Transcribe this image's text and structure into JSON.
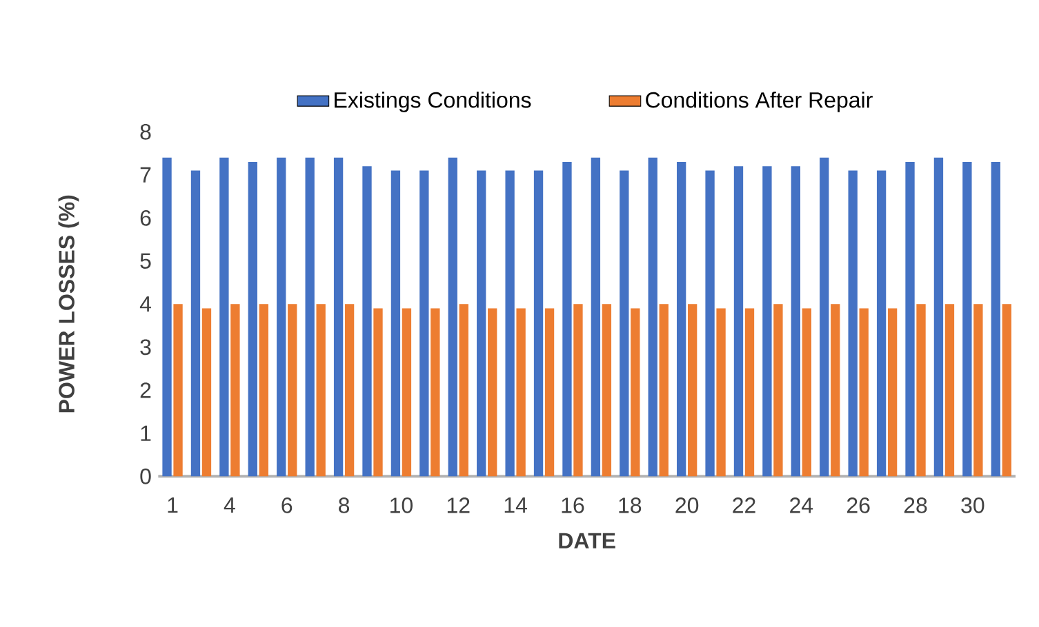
{
  "chart_data": {
    "type": "bar",
    "xlabel": "DATE",
    "ylabel": "POWER LOSSES (%)",
    "categories": [
      "1",
      null,
      "4",
      null,
      "6",
      null,
      "8",
      null,
      "10",
      null,
      "12",
      null,
      "14",
      null,
      "16",
      null,
      "18",
      null,
      "20",
      null,
      "22",
      null,
      "24",
      null,
      "26",
      null,
      "28",
      null,
      "30",
      null
    ],
    "series": [
      {
        "name": "Existings Conditions",
        "color": "#4472c4",
        "values": [
          7.4,
          7.1,
          7.4,
          7.3,
          7.4,
          7.4,
          7.4,
          7.2,
          7.1,
          7.1,
          7.4,
          7.1,
          7.1,
          7.1,
          7.3,
          7.4,
          7.1,
          7.4,
          7.3,
          7.1,
          7.2,
          7.2,
          7.2,
          7.4,
          7.1,
          7.1,
          7.3,
          7.4,
          7.3,
          7.3
        ]
      },
      {
        "name": "Conditions After Repair",
        "color": "#ed7d31",
        "values": [
          4.0,
          3.9,
          4.0,
          4.0,
          4.0,
          4.0,
          4.0,
          3.9,
          3.9,
          3.9,
          4.0,
          3.9,
          3.9,
          3.9,
          4.0,
          4.0,
          3.9,
          4.0,
          4.0,
          3.9,
          3.9,
          4.0,
          3.9,
          4.0,
          3.9,
          3.9,
          4.0,
          4.0,
          4.0,
          4.0
        ]
      }
    ],
    "ylim": [
      0,
      8
    ],
    "yticks": [
      0,
      1,
      2,
      3,
      4,
      5,
      6,
      7,
      8
    ],
    "legend": "top"
  }
}
